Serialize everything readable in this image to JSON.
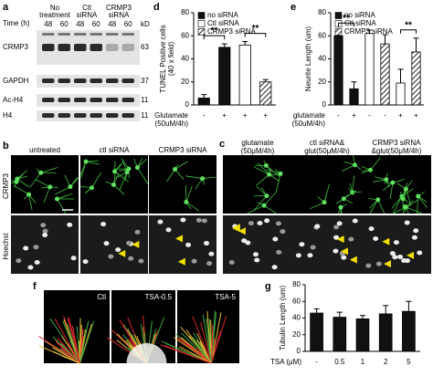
{
  "figure": {
    "panel_labels": [
      "a",
      "b",
      "c",
      "d",
      "e",
      "f",
      "g"
    ]
  },
  "panel_a": {
    "time_label": "Time (h)",
    "groups": [
      [
        "No",
        "treatment"
      ],
      [
        "Ctl",
        "siRNA"
      ],
      [
        "CRMP3",
        "siRNA"
      ]
    ],
    "times": [
      "48",
      "60",
      "48",
      "60",
      "48",
      "60"
    ],
    "kd_label": "kD",
    "blots": [
      {
        "name": "CRMP3",
        "kd": 63
      },
      {
        "name": "GAPDH",
        "kd": 37
      },
      {
        "name": "Ac-H4",
        "kd": 11
      },
      {
        "name": "H4",
        "kd": 11
      }
    ]
  },
  "panel_b": {
    "columns": [
      "untreated",
      "ctl siRNA",
      "CRMP3 siRNA"
    ],
    "rows": [
      "CRMP3",
      "Hoechst"
    ]
  },
  "panel_c": {
    "columns": [
      [
        "glutamate",
        "(50μM/4h)"
      ],
      [
        "ctl siRNA&",
        "glut(50μM/4h)"
      ],
      [
        "CRMP3 siRNA",
        "&glut(50μM/4h)"
      ]
    ]
  },
  "panel_f": {
    "labels": [
      "Ctl",
      "TSA-0.5",
      "TSA-5"
    ]
  },
  "chart_data": [
    {
      "type": "bar",
      "ylabel": [
        "TUNEL Positive cells",
        "(40 x field)"
      ],
      "xlabel": [
        "Glutamate",
        "(50uM/4h)"
      ],
      "categories": [
        "-",
        "+",
        "+",
        "+"
      ],
      "series": [
        {
          "name": "no siRNA",
          "color": "#111111",
          "values": [
            6,
            50,
            null,
            null
          ],
          "errors": [
            3,
            3,
            null,
            null
          ]
        },
        {
          "name": "Ctl siRNA",
          "color": "#ffffff",
          "values": [
            null,
            null,
            52,
            null
          ],
          "errors": [
            null,
            null,
            3,
            null
          ]
        },
        {
          "name": "CRMP3 siRNA",
          "color": "#444444",
          "hatch": true,
          "values": [
            null,
            null,
            null,
            20
          ],
          "errors": [
            null,
            null,
            null,
            2
          ]
        }
      ],
      "ylim": [
        0,
        80
      ],
      "yticks": [
        0,
        20,
        40,
        60,
        80
      ],
      "annotations": [
        "**",
        "**"
      ],
      "legend": "upper left"
    },
    {
      "type": "bar",
      "ylabel": "Neurite Length (um)",
      "xlabel": [
        "glutamate",
        "(50uM/4h)"
      ],
      "categories": [
        "-",
        "+",
        "-",
        "-",
        "+",
        "+"
      ],
      "series": [
        {
          "name": "no siRNA",
          "color": "#111111",
          "values": [
            60,
            14,
            null,
            null,
            null,
            null
          ],
          "errors": [
            4,
            6,
            null,
            null,
            null,
            null
          ]
        },
        {
          "name": "Ctl siRNA",
          "color": "#ffffff",
          "values": [
            null,
            null,
            62,
            null,
            19,
            null
          ],
          "errors": [
            null,
            null,
            3,
            null,
            12,
            null
          ]
        },
        {
          "name": "CRMP3 siRNA",
          "color": "#444444",
          "hatch": true,
          "values": [
            null,
            null,
            null,
            53,
            null,
            46
          ],
          "errors": [
            null,
            null,
            null,
            8,
            null,
            12
          ]
        }
      ],
      "ylim": [
        0,
        80
      ],
      "yticks": [
        0,
        20,
        40,
        60,
        80
      ],
      "annotations": [
        "**",
        "**"
      ],
      "legend": "upper left"
    },
    {
      "type": "bar",
      "ylabel": "Tubulin Length (um)",
      "xlabel": "TSA (μM)",
      "categories": [
        "-",
        "0.5",
        "1",
        "2",
        "5"
      ],
      "color": "#111111",
      "values": [
        46,
        41,
        39,
        45,
        48
      ],
      "errors": [
        5,
        6,
        4,
        10,
        12
      ],
      "ylim": [
        0,
        80
      ],
      "yticks": [
        0,
        20,
        40,
        60,
        80
      ]
    }
  ]
}
